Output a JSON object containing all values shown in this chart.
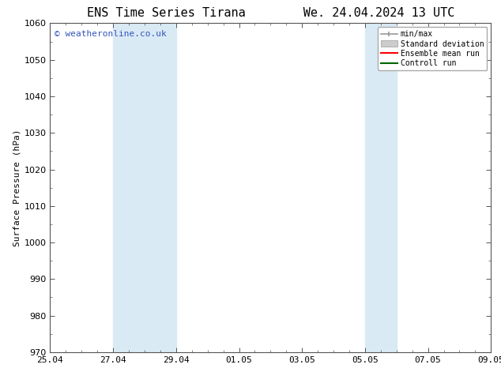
{
  "title_left": "ENS Time Series Tirana",
  "title_right": "We. 24.04.2024 13 UTC",
  "ylabel": "Surface Pressure (hPa)",
  "ylim": [
    970,
    1060
  ],
  "yticks": [
    970,
    980,
    990,
    1000,
    1010,
    1020,
    1030,
    1040,
    1050,
    1060
  ],
  "xtick_labels": [
    "25.04",
    "27.04",
    "29.04",
    "01.05",
    "03.05",
    "05.05",
    "07.05",
    "09.05"
  ],
  "xtick_positions": [
    0,
    2,
    4,
    6,
    8,
    10,
    12,
    14
  ],
  "shaded_regions": [
    {
      "x_start": 2,
      "x_end": 4,
      "color": "#daeaf5",
      "alpha": 1.0
    },
    {
      "x_start": 10,
      "x_end": 11,
      "color": "#daeaf5",
      "alpha": 1.0
    }
  ],
  "watermark": "© weatheronline.co.uk",
  "watermark_color": "#3355bb",
  "watermark_fontsize": 8,
  "legend_labels": [
    "min/max",
    "Standard deviation",
    "Ensemble mean run",
    "Controll run"
  ],
  "legend_colors": [
    "#999999",
    "#cccccc",
    "#ff0000",
    "#006600"
  ],
  "bg_color": "#ffffff",
  "plot_bg_color": "#ffffff",
  "tick_color": "#000000",
  "title_fontsize": 11,
  "axis_fontsize": 8,
  "ylabel_fontsize": 8
}
